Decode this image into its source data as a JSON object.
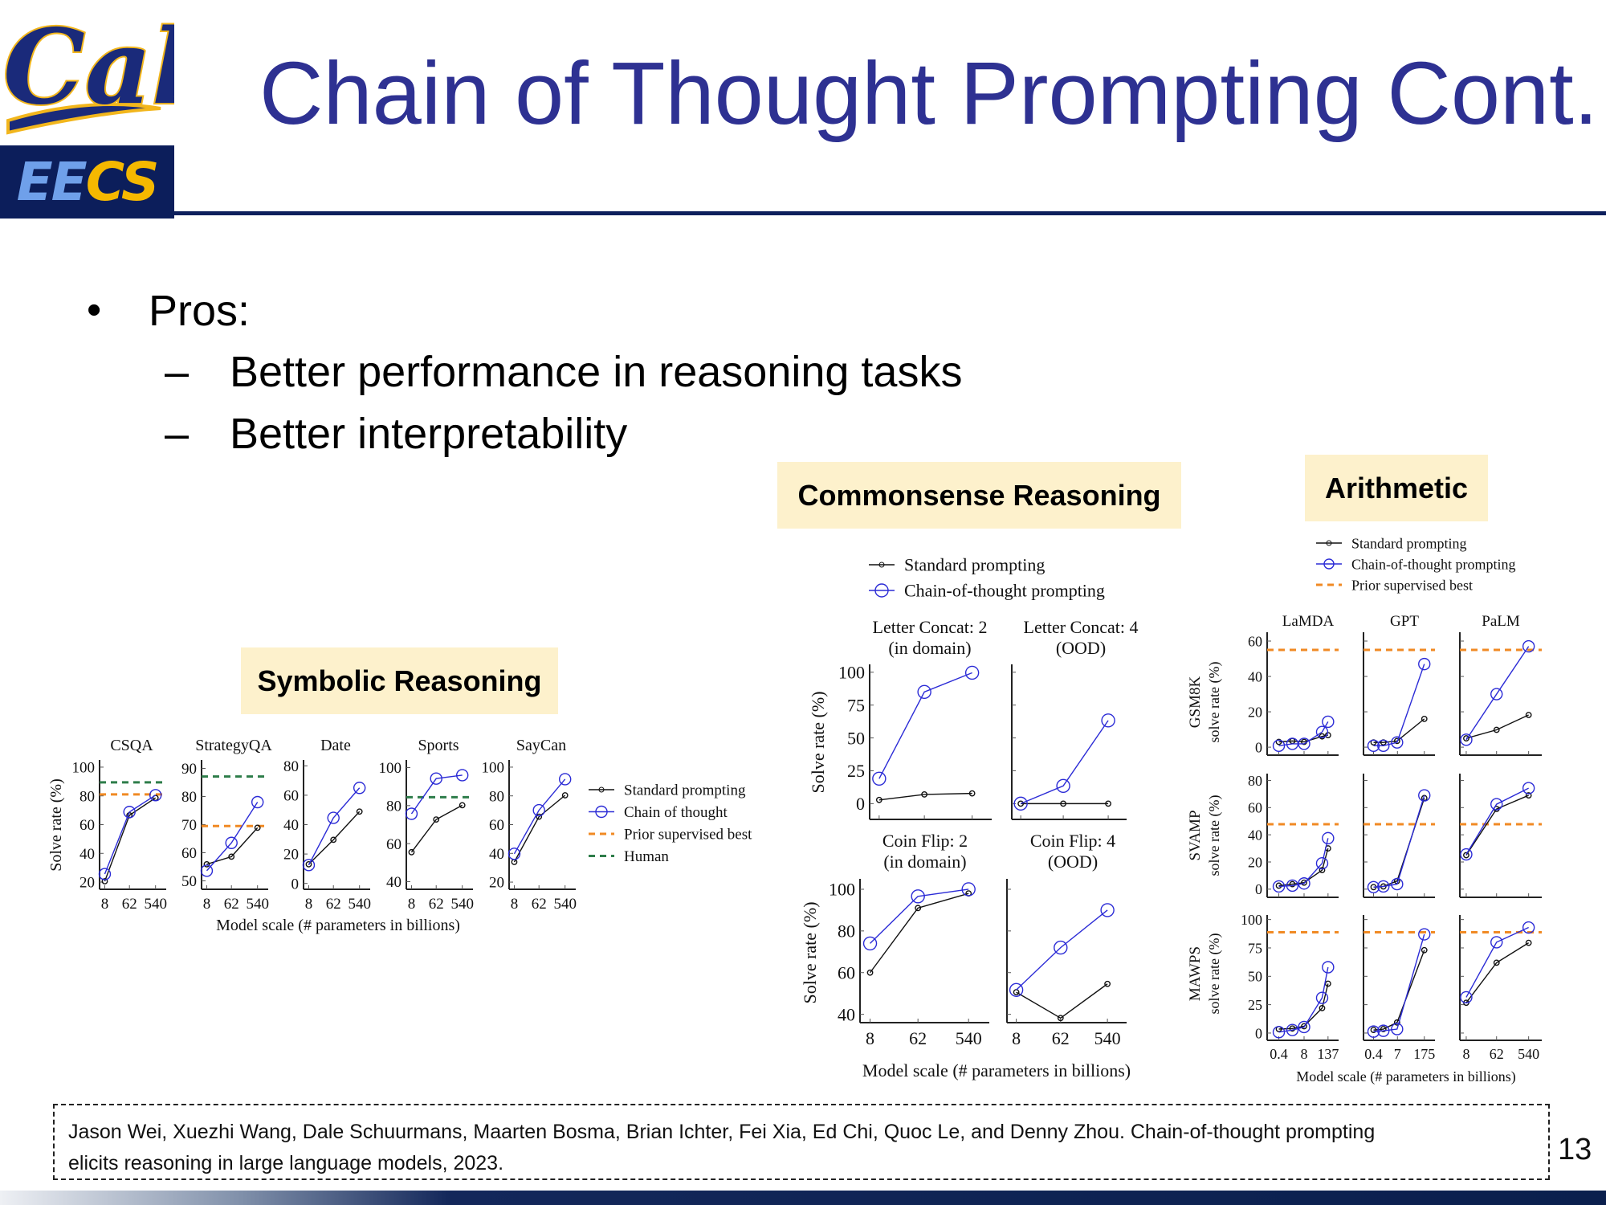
{
  "logo": {
    "script_text": "Cal",
    "badge_parts": [
      "EE",
      "CS"
    ]
  },
  "header": {
    "title": "Chain of Thought Prompting Cont."
  },
  "bullets": {
    "main": {
      "symbol": "•",
      "text": "Pros:"
    },
    "sub": [
      {
        "symbol": "–",
        "text": "Better performance in reasoning tasks"
      },
      {
        "symbol": "–",
        "text": "Better interpretability"
      }
    ]
  },
  "tags": {
    "commonsense": "Commonsense Reasoning",
    "arithmetic": "Arithmetic",
    "symbolic": "Symbolic Reasoning"
  },
  "footer": {
    "citation_line1": "Jason Wei, Xuezhi Wang, Dale Schuurmans, Maarten Bosma, Brian Ichter, Fei Xia, Ed Chi, Quoc Le, and Denny Zhou. Chain-of-thought prompting",
    "citation_line2": "elicits reasoning in large language models, 2023.",
    "page_number": "13"
  },
  "colors": {
    "title": "#2e3192",
    "standard": "#111111",
    "cot": "#2b2bd6",
    "prior_best": "#f08a24",
    "human": "#2e7d4a",
    "tag_bg": "#fdf1cc",
    "navy": "#0c1e5b"
  },
  "chart_data": [
    {
      "type": "line",
      "xlabel": "Model scale (# parameters in billions)",
      "ylabel": "Solve rate (%)",
      "xscale": "log",
      "legend_position": "right",
      "legend": [
        "Standard prompting",
        "Chain of thought",
        "Prior supervised best",
        "Human"
      ],
      "panels": [
        {
          "title": "CSQA",
          "x": [
            8,
            62,
            540
          ],
          "xtick_labels": [
            "8",
            "62",
            "540"
          ],
          "ylim": [
            15,
            105
          ],
          "yticks": [
            "20",
            "40",
            "60",
            "80",
            "100"
          ],
          "standard": [
            20.6,
            66.5,
            78.6
          ],
          "cot": [
            25.6,
            68.8,
            80.5
          ],
          "prior_best": 81,
          "human": 89.4
        },
        {
          "title": "StrategyQA",
          "x": [
            8,
            62,
            540
          ],
          "xtick_labels": [
            "8",
            "62",
            "540"
          ],
          "ylim": [
            47,
            93
          ],
          "yticks": [
            "50",
            "60",
            "70",
            "80",
            "90"
          ],
          "standard": [
            55.9,
            58.6,
            68.9
          ],
          "cot": [
            53.6,
            63.5,
            78
          ],
          "prior_best": 69.5,
          "human": 87.1
        },
        {
          "title": "Date",
          "x": [
            8,
            62,
            540
          ],
          "xtick_labels": [
            "8",
            "62",
            "540"
          ],
          "ylim": [
            -4,
            84
          ],
          "yticks": [
            "0",
            "20",
            "40",
            "60",
            "80"
          ],
          "standard": [
            13,
            29.7,
            48.9
          ],
          "cot": [
            12.5,
            44.6,
            65
          ]
        },
        {
          "title": "Sports",
          "x": [
            8,
            62,
            540
          ],
          "xtick_labels": [
            "8",
            "62",
            "540"
          ],
          "ylim": [
            36,
            104
          ],
          "yticks": [
            "40",
            "60",
            "80",
            "100"
          ],
          "standard": [
            55.5,
            72.7,
            80.2
          ],
          "cot": [
            75.7,
            94.2,
            96
          ],
          "human": 84.4
        },
        {
          "title": "SayCan",
          "x": [
            8,
            62,
            540
          ],
          "xtick_labels": [
            "8",
            "62",
            "540"
          ],
          "ylim": [
            15,
            105
          ],
          "yticks": [
            "20",
            "40",
            "60",
            "80",
            "100"
          ],
          "standard": [
            34,
            65.5,
            80.4
          ],
          "cot": [
            39.7,
            70,
            91.6
          ]
        }
      ]
    },
    {
      "type": "line",
      "xlabel": "Model scale (# parameters in billions)",
      "ylabel": "Solve rate (%)",
      "xscale": "log",
      "legend_position": "top",
      "legend": [
        "Standard prompting",
        "Chain-of-thought prompting"
      ],
      "panels": [
        {
          "title_lines": [
            "Letter Concat: 2",
            "(in domain)"
          ],
          "x": [
            8,
            62,
            540
          ],
          "xtick_labels": [],
          "ylim": [
            -12,
            106
          ],
          "yticks": [
            "0",
            "25",
            "50",
            "75",
            "100"
          ],
          "ytick_labels_shown": true,
          "standard": [
            2.8,
            7,
            7.8
          ],
          "cot": [
            19,
            85,
            99.6
          ]
        },
        {
          "title_lines": [
            "Letter Concat: 4",
            "(OOD)"
          ],
          "x": [
            8,
            62,
            540
          ],
          "xtick_labels": [],
          "ylim": [
            -12,
            106
          ],
          "yticks": [
            "0",
            "25",
            "50",
            "75",
            "100"
          ],
          "ytick_labels_shown": false,
          "standard": [
            0,
            0,
            0
          ],
          "cot": [
            0,
            13.5,
            63.3
          ]
        },
        {
          "title_lines": [
            "Coin Flip: 2",
            "(in domain)"
          ],
          "x": [
            8,
            62,
            540
          ],
          "xtick_labels": [
            "8",
            "62",
            "540"
          ],
          "ylim": [
            36,
            105
          ],
          "yticks": [
            "40",
            "60",
            "80",
            "100"
          ],
          "ytick_labels_shown": true,
          "standard": [
            60,
            91,
            98
          ],
          "cot": [
            74,
            96.6,
            100
          ]
        },
        {
          "title_lines": [
            "Coin Flip: 4",
            "(OOD)"
          ],
          "x": [
            8,
            62,
            540
          ],
          "xtick_labels": [
            "8",
            "62",
            "540"
          ],
          "ylim": [
            36,
            105
          ],
          "yticks": [
            "40",
            "60",
            "80",
            "100"
          ],
          "ytick_labels_shown": false,
          "standard": [
            50.6,
            38.2,
            54.6
          ],
          "cot": [
            51.7,
            72,
            90
          ]
        }
      ]
    },
    {
      "type": "line",
      "xlabel": "Model scale (# parameters in billions)",
      "xscale": "log",
      "legend_position": "top",
      "legend": [
        "Standard prompting",
        "Chain-of-thought prompting",
        "Prior supervised best"
      ],
      "col_titles": [
        "LaMDA",
        "GPT",
        "PaLM"
      ],
      "row_labels": [
        [
          "GSM8K",
          "solve rate (%)"
        ],
        [
          "SVAMP",
          "solve rate (%)"
        ],
        [
          "MAWPS",
          "solve rate (%)"
        ]
      ],
      "panels": [
        {
          "model": "LaMDA",
          "dataset": "GSM8K",
          "x": [
            0.4,
            2,
            8,
            68,
            137
          ],
          "xlim": [
            0.1,
            480
          ],
          "xtick_values": [
            0.4,
            8,
            137
          ],
          "xtick_labels": [],
          "ylim": [
            -4.5,
            65
          ],
          "yticks": [
            "0",
            "20",
            "40",
            "60"
          ],
          "ytick_labels_shown": true,
          "standard": [
            3,
            3.5,
            3,
            6.1,
            6.8
          ],
          "cot": [
            0.8,
            1.9,
            1.9,
            8.6,
            14.4
          ],
          "prior_best": 55
        },
        {
          "model": "GPT",
          "dataset": "GSM8K",
          "x": [
            0.4,
            1.3,
            6.7,
            175
          ],
          "xlim": [
            0.12,
            626
          ],
          "xtick_values": [
            0.4,
            7,
            175
          ],
          "xtick_labels": [],
          "ylim": [
            -4.5,
            65
          ],
          "yticks": [
            "0",
            "20",
            "40",
            "60"
          ],
          "ytick_labels_shown": false,
          "standard": [
            2.7,
            2.7,
            3.5,
            16
          ],
          "cot": [
            0.8,
            0.8,
            2.7,
            47
          ],
          "prior_best": 55
        },
        {
          "model": "PaLM",
          "dataset": "GSM8K",
          "x": [
            8,
            62,
            540
          ],
          "xlim": [
            5.2,
            1310
          ],
          "xtick_values": [
            8,
            62,
            540
          ],
          "xtick_labels": [],
          "ylim": [
            -4.5,
            65
          ],
          "yticks": [
            "0",
            "20",
            "40",
            "60"
          ],
          "ytick_labels_shown": false,
          "standard": [
            5,
            9.8,
            18.2
          ],
          "cot": [
            4.2,
            30,
            57
          ],
          "prior_best": 55
        },
        {
          "model": "LaMDA",
          "dataset": "SVAMP",
          "x": [
            0.4,
            2,
            8,
            68,
            137
          ],
          "xlim": [
            0.1,
            480
          ],
          "xtick_values": [
            0.4,
            8,
            137
          ],
          "xtick_labels": [],
          "ylim": [
            -6,
            85
          ],
          "yticks": [
            "0",
            "20",
            "40",
            "60",
            "80"
          ],
          "ytick_labels_shown": true,
          "standard": [
            2.6,
            3.7,
            4.8,
            14,
            30
          ],
          "cot": [
            2,
            2.6,
            4.2,
            19,
            37.5
          ],
          "prior_best": 47.8
        },
        {
          "model": "GPT",
          "dataset": "SVAMP",
          "x": [
            0.4,
            1.3,
            6.7,
            175
          ],
          "xlim": [
            0.12,
            626
          ],
          "xtick_values": [
            0.4,
            7,
            175
          ],
          "xtick_labels": [],
          "ylim": [
            -6,
            85
          ],
          "yticks": [
            "0",
            "20",
            "40",
            "60",
            "80"
          ],
          "ytick_labels_shown": false,
          "standard": [
            1.5,
            2,
            6,
            67
          ],
          "cot": [
            1.5,
            2,
            3.7,
            69
          ],
          "prior_best": 47.8
        },
        {
          "model": "PaLM",
          "dataset": "SVAMP",
          "x": [
            8,
            62,
            540
          ],
          "xlim": [
            5.2,
            1310
          ],
          "xtick_values": [
            8,
            62,
            540
          ],
          "xtick_labels": [],
          "ylim": [
            -6,
            85
          ],
          "yticks": [
            "0",
            "20",
            "40",
            "60",
            "80"
          ],
          "ytick_labels_shown": false,
          "standard": [
            25,
            59,
            69
          ],
          "cot": [
            25.6,
            62.5,
            74.3
          ],
          "prior_best": 47.8
        },
        {
          "model": "LaMDA",
          "dataset": "MAWPS",
          "x": [
            0.4,
            2,
            8,
            68,
            137
          ],
          "xlim": [
            0.1,
            480
          ],
          "xtick_values": [
            0.4,
            8,
            137
          ],
          "xtick_labels": [
            "0.4",
            "8",
            "137"
          ],
          "ylim": [
            -6.4,
            104
          ],
          "yticks": [
            "0",
            "25",
            "50",
            "75",
            "100"
          ],
          "ytick_labels_shown": true,
          "standard": [
            3.5,
            4,
            6,
            22,
            43.5
          ],
          "cot": [
            0.8,
            2.7,
            5.3,
            31,
            58
          ],
          "prior_best": 88.8
        },
        {
          "model": "GPT",
          "dataset": "MAWPS",
          "x": [
            0.4,
            1.3,
            6.7,
            175
          ],
          "xlim": [
            0.12,
            626
          ],
          "xtick_values": [
            0.4,
            7,
            175
          ],
          "xtick_labels": [
            "0.4",
            "7",
            "175"
          ],
          "ylim": [
            -6.4,
            104
          ],
          "yticks": [
            "0",
            "25",
            "50",
            "75",
            "100"
          ],
          "ytick_labels_shown": false,
          "standard": [
            2.7,
            3.5,
            9.3,
            73
          ],
          "cot": [
            1.3,
            2,
            3.5,
            87
          ],
          "prior_best": 88.8
        },
        {
          "model": "PaLM",
          "dataset": "MAWPS",
          "x": [
            8,
            62,
            540
          ],
          "xlim": [
            5.2,
            1310
          ],
          "xtick_values": [
            8,
            62,
            540
          ],
          "xtick_labels": [
            "8",
            "62",
            "540"
          ],
          "ylim": [
            -6.4,
            104
          ],
          "yticks": [
            "0",
            "25",
            "50",
            "75",
            "100"
          ],
          "ytick_labels_shown": false,
          "standard": [
            26.7,
            62,
            79.5
          ],
          "cot": [
            31.5,
            80,
            93
          ],
          "prior_best": 88.8
        }
      ]
    }
  ]
}
